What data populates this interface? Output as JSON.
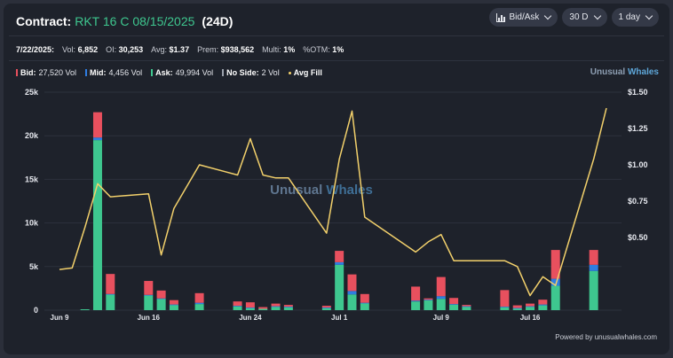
{
  "header": {
    "label": "Contract:",
    "contract": "RKT 16 C 08/15/2025",
    "dte": "(24D)",
    "controls": [
      {
        "label": "Bid/Ask",
        "icon": "bar-chart-icon"
      },
      {
        "label": "30 D"
      },
      {
        "label": "1 day"
      }
    ]
  },
  "stats": {
    "date": "7/22/2025:",
    "vol_label": "Vol:",
    "vol": "6,852",
    "oi_label": "OI:",
    "oi": "30,253",
    "avg_label": "Avg:",
    "avg": "$1.37",
    "prem_label": "Prem:",
    "prem": "$938,562",
    "multi_label": "Multi:",
    "multi": "1%",
    "otm_label": "%OTM:",
    "otm": "1%"
  },
  "legend": {
    "bid_label": "Bid:",
    "bid": "27,520 Vol",
    "mid_label": "Mid:",
    "mid": "4,456 Vol",
    "ask_label": "Ask:",
    "ask": "49,994 Vol",
    "noside_label": "No Side:",
    "noside": "2 Vol",
    "avgfill_label": "Avg Fill"
  },
  "brand": {
    "part1": "Unusual",
    "part2": "Whales"
  },
  "watermark": {
    "part1": "Unusual",
    "part2": "Whales"
  },
  "footer": "Powered by unusualwhales.com",
  "colors": {
    "bid": "#e8505e",
    "mid": "#2f7de1",
    "ask": "#3ec78f",
    "noside": "#9aa0ab",
    "avg_fill": "#f2d06b",
    "background": "#1e222b"
  },
  "chart_data": {
    "type": "bar",
    "stacked": true,
    "x": [
      "2025-06-09",
      "2025-06-10",
      "2025-06-11",
      "2025-06-12",
      "2025-06-13",
      "2025-06-16",
      "2025-06-17",
      "2025-06-18",
      "2025-06-20",
      "2025-06-23",
      "2025-06-24",
      "2025-06-25",
      "2025-06-26",
      "2025-06-27",
      "2025-06-30",
      "2025-07-01",
      "2025-07-02",
      "2025-07-03",
      "2025-07-07",
      "2025-07-08",
      "2025-07-09",
      "2025-07-10",
      "2025-07-11",
      "2025-07-14",
      "2025-07-15",
      "2025-07-16",
      "2025-07-17",
      "2025-07-18",
      "2025-07-21",
      "2025-07-22"
    ],
    "x_ticks": [
      {
        "date": "2025-06-09",
        "label": "Jun 9"
      },
      {
        "date": "2025-06-16",
        "label": "Jun 16"
      },
      {
        "date": "2025-06-24",
        "label": "Jun 24"
      },
      {
        "date": "2025-07-01",
        "label": "Jul 1"
      },
      {
        "date": "2025-07-09",
        "label": "Jul 9"
      },
      {
        "date": "2025-07-16",
        "label": "Jul 16"
      }
    ],
    "series": [
      {
        "name": "Ask",
        "values": [
          0,
          0,
          100,
          19500,
          1800,
          1700,
          1300,
          600,
          700,
          450,
          250,
          150,
          400,
          350,
          250,
          5200,
          1800,
          800,
          1000,
          1150,
          1300,
          650,
          400,
          350,
          200,
          400,
          550,
          2800,
          4500,
          0
        ]
      },
      {
        "name": "Mid",
        "values": [
          0,
          0,
          0,
          300,
          50,
          50,
          50,
          50,
          150,
          50,
          50,
          0,
          50,
          50,
          50,
          300,
          400,
          50,
          100,
          50,
          300,
          50,
          50,
          50,
          50,
          50,
          100,
          800,
          700,
          0
        ]
      },
      {
        "name": "Bid",
        "values": [
          0,
          0,
          0,
          2900,
          2300,
          1600,
          900,
          500,
          1100,
          500,
          600,
          200,
          300,
          200,
          200,
          1300,
          1900,
          1000,
          1600,
          150,
          2200,
          700,
          150,
          1900,
          300,
          300,
          550,
          3300,
          1700,
          0
        ]
      },
      {
        "name": "No Side",
        "values": [
          0,
          0,
          0,
          0,
          0,
          0,
          0,
          0,
          0,
          0,
          0,
          0,
          0,
          0,
          0,
          0,
          0,
          0,
          0,
          0,
          0,
          0,
          0,
          0,
          0,
          0,
          0,
          0,
          0,
          0
        ]
      },
      {
        "name": "Avg Fill",
        "axis": "right",
        "type": "line",
        "values": [
          0.28,
          0.29,
          0.57,
          0.87,
          0.78,
          0.8,
          0.38,
          0.7,
          1.0,
          0.93,
          1.18,
          0.93,
          0.91,
          0.91,
          0.53,
          1.04,
          1.37,
          0.64,
          0.4,
          0.47,
          0.52,
          0.34,
          0.34,
          0.34,
          0.3,
          0.1,
          0.23,
          0.17,
          1.04,
          1.39
        ]
      }
    ],
    "y_left": {
      "ticks": [
        0,
        5000,
        10000,
        15000,
        20000,
        25000
      ],
      "tick_labels": [
        "0",
        "5k",
        "10k",
        "15k",
        "20k",
        "25k"
      ],
      "ylim": [
        0,
        25000
      ]
    },
    "y_right": {
      "ticks": [
        0.5,
        0.75,
        1.0,
        1.25,
        1.5
      ],
      "tick_labels": [
        "$0.50",
        "$0.75",
        "$1.00",
        "$1.25",
        "$1.50"
      ],
      "ylim": [
        0,
        1.5
      ]
    },
    "grid": true
  }
}
